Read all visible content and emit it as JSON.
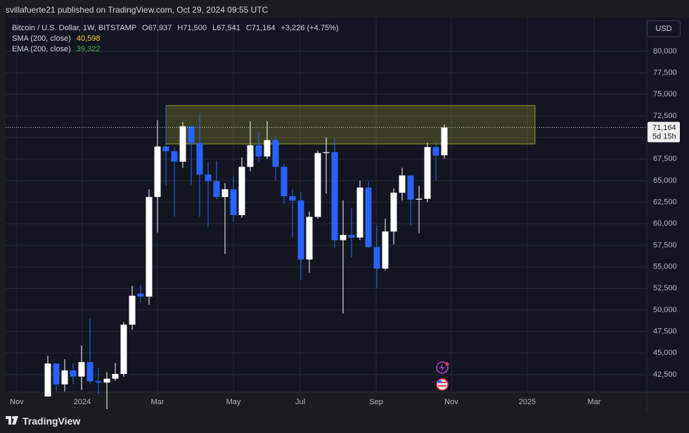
{
  "chart_data": {
    "type": "candlestick",
    "header": "svillafuerte21 published on TradingView.com, Oct 29, 2024 09:55 UTC",
    "symbol": "Bitcoin / U.S. Dollar, 1W, BITSTAMP",
    "ohlc_text": [
      "O67,937",
      "H71,500",
      "L67,541",
      "C71,164",
      "+3,226 (+4.75%)"
    ],
    "indicators": [
      {
        "name": "SMA (200, close)",
        "value": "40,598",
        "color": "#f5d142"
      },
      {
        "name": "EMA (200, close)",
        "value": "39,322",
        "color": "#4caf50"
      }
    ],
    "currency": "USD",
    "brand": "TradingView",
    "categories": [
      null,
      null,
      null,
      null,
      null,
      null,
      null,
      null,
      null,
      null,
      null,
      null,
      null,
      null,
      null,
      null,
      null,
      null,
      null,
      null,
      null,
      null,
      null,
      null,
      null,
      null,
      null,
      null,
      null,
      null,
      null,
      null,
      null,
      null,
      null,
      null,
      null,
      null,
      null,
      null,
      null,
      null,
      null,
      null,
      null,
      null,
      null,
      null
    ],
    "open": [
      39972,
      43780,
      41370,
      42990,
      42280,
      43950,
      41730,
      41580,
      42030,
      42580,
      48300,
      51900,
      51550,
      63100,
      68950,
      68400,
      67200,
      71300,
      69360,
      65700,
      64950,
      63100,
      64000,
      61000,
      66600,
      69100,
      67800,
      69700,
      66600,
      63200,
      62700,
      55850,
      60800,
      68200,
      68300,
      58100,
      58700,
      58400,
      64200,
      57300,
      54800,
      59100,
      63600,
      65600,
      62800,
      62900,
      68900,
      67937
    ],
    "high": [
      44700,
      43800,
      44280,
      43800,
      45900,
      48970,
      43300,
      42800,
      43850,
      48600,
      52800,
      52900,
      64000,
      72000,
      73800,
      68900,
      71800,
      71300,
      72800,
      67200,
      67300,
      64700,
      65500,
      67700,
      71900,
      70600,
      71900,
      70200,
      66900,
      64000,
      63700,
      61400,
      68500,
      70000,
      70000,
      62700,
      61800,
      65000,
      64900,
      59800,
      60600,
      64100,
      66500,
      65600,
      64400,
      69400,
      69500,
      71500
    ],
    "low": [
      39972,
      40500,
      40550,
      41400,
      40750,
      41500,
      40300,
      38500,
      41800,
      42250,
      47700,
      50800,
      50600,
      59000,
      64500,
      60800,
      66500,
      64500,
      60800,
      59600,
      62800,
      56500,
      60200,
      60700,
      66100,
      67100,
      67500,
      65000,
      62300,
      58400,
      53500,
      54300,
      60600,
      63500,
      57200,
      49600,
      56100,
      58100,
      57200,
      52500,
      54600,
      57600,
      62700,
      59800,
      58900,
      62500,
      65000,
      67541
    ],
    "close": [
      43780,
      41370,
      42990,
      42280,
      43950,
      41730,
      41580,
      42030,
      42580,
      48300,
      51650,
      51550,
      63100,
      68950,
      68400,
      67200,
      71300,
      69360,
      65700,
      64950,
      63100,
      64000,
      61000,
      66600,
      69100,
      67800,
      69700,
      66600,
      63200,
      62700,
      55850,
      60800,
      68200,
      68300,
      58100,
      58700,
      58400,
      64200,
      57300,
      54800,
      59100,
      63600,
      65600,
      62800,
      62900,
      68900,
      67900,
      71164
    ],
    "up_color": "#ffffff",
    "down_color": "#2962ff",
    "zone": {
      "low": 69250,
      "high": 73700,
      "x": [
        14,
        57.75
      ],
      "color": "#c8c832"
    },
    "last_price": {
      "value": 71164,
      "label": "71,164",
      "countdown": "5d 15h"
    },
    "xlim": [
      -5,
      71
    ],
    "xticks": [
      {
        "value": -3.67,
        "label": "Nov"
      },
      {
        "value": 4.08,
        "label": "2024"
      },
      {
        "value": 13,
        "label": "Mar"
      },
      {
        "value": 22,
        "label": "May"
      },
      {
        "value": 29.92,
        "label": "Jul"
      },
      {
        "value": 38.92,
        "label": "Sep"
      },
      {
        "value": 47.83,
        "label": "Nov"
      },
      {
        "value": 56.83,
        "label": "2025"
      },
      {
        "value": 64.75,
        "label": "Mar"
      }
    ],
    "ylim": [
      40460,
      83910
    ],
    "yticks": [
      {
        "value": 42500,
        "label": "42,500"
      },
      {
        "value": 45000,
        "label": "45,000"
      },
      {
        "value": 47500,
        "label": "47,500"
      },
      {
        "value": 50000,
        "label": "50,000"
      },
      {
        "value": 52500,
        "label": "52,500"
      },
      {
        "value": 55000,
        "label": "55,000"
      },
      {
        "value": 57500,
        "label": "57,500"
      },
      {
        "value": 60000,
        "label": "60,000"
      },
      {
        "value": 62500,
        "label": "62,500"
      },
      {
        "value": 65000,
        "label": "65,000"
      },
      {
        "value": 67500,
        "label": "67,500"
      },
      {
        "value": 70000,
        "label": "70,000"
      },
      {
        "value": 72500,
        "label": "72,500"
      },
      {
        "value": 75000,
        "label": "75,000"
      },
      {
        "value": 77500,
        "label": "77,500"
      },
      {
        "value": 80000,
        "label": "80,000"
      }
    ],
    "grid": true
  }
}
